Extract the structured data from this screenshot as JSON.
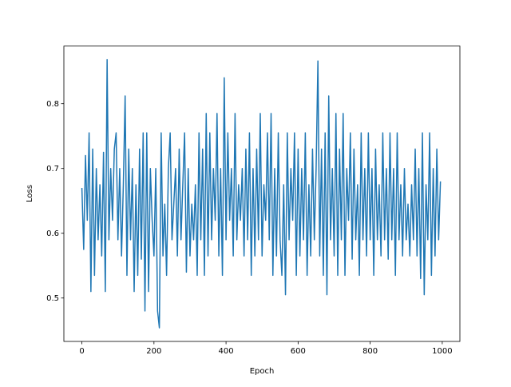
{
  "chart_data": {
    "type": "line",
    "title": "",
    "xlabel": "Epoch",
    "ylabel": "Loss",
    "xlim": [
      -50,
      1049
    ],
    "ylim": [
      0.433,
      0.889
    ],
    "xticks": [
      0,
      200,
      400,
      600,
      800,
      1000
    ],
    "yticks": [
      0.5,
      0.6,
      0.7,
      0.8
    ],
    "xtick_labels": [
      "0",
      "200",
      "400",
      "600",
      "800",
      "1000"
    ],
    "ytick_labels": [
      "0.5",
      "0.6",
      "0.7",
      "0.8"
    ],
    "grid": false,
    "line_color": "#1f77b4",
    "series": [
      {
        "x": [
          0,
          5,
          10,
          15,
          20,
          25,
          30,
          35,
          40,
          45,
          50,
          55,
          60,
          65,
          70,
          75,
          80,
          85,
          90,
          95,
          100,
          105,
          110,
          115,
          120,
          125,
          130,
          135,
          140,
          145,
          150,
          155,
          160,
          165,
          170,
          175,
          180,
          185,
          190,
          195,
          200,
          205,
          210,
          215,
          220,
          225,
          230,
          235,
          240,
          245,
          250,
          255,
          260,
          265,
          270,
          275,
          280,
          285,
          290,
          295,
          300,
          305,
          310,
          315,
          320,
          325,
          330,
          335,
          340,
          345,
          350,
          355,
          360,
          365,
          370,
          375,
          380,
          385,
          390,
          395,
          400,
          405,
          410,
          415,
          420,
          425,
          430,
          435,
          440,
          445,
          450,
          455,
          460,
          465,
          470,
          475,
          480,
          485,
          490,
          495,
          500,
          505,
          510,
          515,
          520,
          525,
          530,
          535,
          540,
          545,
          550,
          555,
          560,
          565,
          570,
          575,
          580,
          585,
          590,
          595,
          600,
          605,
          610,
          615,
          620,
          625,
          630,
          635,
          640,
          645,
          650,
          655,
          660,
          665,
          670,
          675,
          680,
          685,
          690,
          695,
          700,
          705,
          710,
          715,
          720,
          725,
          730,
          735,
          740,
          745,
          750,
          755,
          760,
          765,
          770,
          775,
          780,
          785,
          790,
          795,
          800,
          805,
          810,
          815,
          820,
          825,
          830,
          835,
          840,
          845,
          850,
          855,
          860,
          865,
          870,
          875,
          880,
          885,
          890,
          895,
          900,
          905,
          910,
          915,
          920,
          925,
          930,
          935,
          940,
          945,
          950,
          955,
          960,
          965,
          970,
          975,
          980,
          985,
          990,
          995
        ],
        "y": [
          0.67,
          0.575,
          0.72,
          0.62,
          0.755,
          0.51,
          0.73,
          0.535,
          0.7,
          0.59,
          0.675,
          0.565,
          0.725,
          0.51,
          0.868,
          0.59,
          0.7,
          0.62,
          0.73,
          0.755,
          0.59,
          0.7,
          0.565,
          0.675,
          0.812,
          0.535,
          0.73,
          0.59,
          0.7,
          0.51,
          0.675,
          0.535,
          0.73,
          0.56,
          0.755,
          0.48,
          0.755,
          0.51,
          0.7,
          0.62,
          0.565,
          0.7,
          0.48,
          0.454,
          0.755,
          0.565,
          0.645,
          0.535,
          0.7,
          0.755,
          0.59,
          0.645,
          0.7,
          0.565,
          0.73,
          0.59,
          0.675,
          0.755,
          0.54,
          0.7,
          0.565,
          0.645,
          0.59,
          0.675,
          0.535,
          0.755,
          0.59,
          0.73,
          0.535,
          0.785,
          0.565,
          0.755,
          0.59,
          0.7,
          0.62,
          0.785,
          0.565,
          0.7,
          0.535,
          0.84,
          0.59,
          0.755,
          0.62,
          0.7,
          0.565,
          0.785,
          0.59,
          0.675,
          0.62,
          0.7,
          0.565,
          0.73,
          0.59,
          0.755,
          0.535,
          0.7,
          0.565,
          0.73,
          0.59,
          0.785,
          0.565,
          0.675,
          0.62,
          0.755,
          0.59,
          0.785,
          0.535,
          0.7,
          0.565,
          0.755,
          0.59,
          0.535,
          0.675,
          0.505,
          0.755,
          0.59,
          0.7,
          0.62,
          0.755,
          0.535,
          0.73,
          0.565,
          0.7,
          0.59,
          0.755,
          0.535,
          0.675,
          0.565,
          0.73,
          0.59,
          0.7,
          0.866,
          0.565,
          0.73,
          0.535,
          0.755,
          0.505,
          0.812,
          0.59,
          0.7,
          0.565,
          0.785,
          0.535,
          0.73,
          0.59,
          0.785,
          0.535,
          0.7,
          0.62,
          0.755,
          0.56,
          0.73,
          0.59,
          0.675,
          0.535,
          0.755,
          0.59,
          0.7,
          0.565,
          0.755,
          0.59,
          0.7,
          0.535,
          0.73,
          0.59,
          0.675,
          0.565,
          0.755,
          0.59,
          0.7,
          0.56,
          0.755,
          0.59,
          0.7,
          0.535,
          0.755,
          0.59,
          0.675,
          0.565,
          0.7,
          0.59,
          0.645,
          0.565,
          0.675,
          0.59,
          0.73,
          0.565,
          0.7,
          0.53,
          0.755,
          0.505,
          0.675,
          0.59,
          0.755,
          0.535,
          0.7,
          0.565,
          0.73,
          0.59,
          0.68
        ]
      }
    ]
  }
}
